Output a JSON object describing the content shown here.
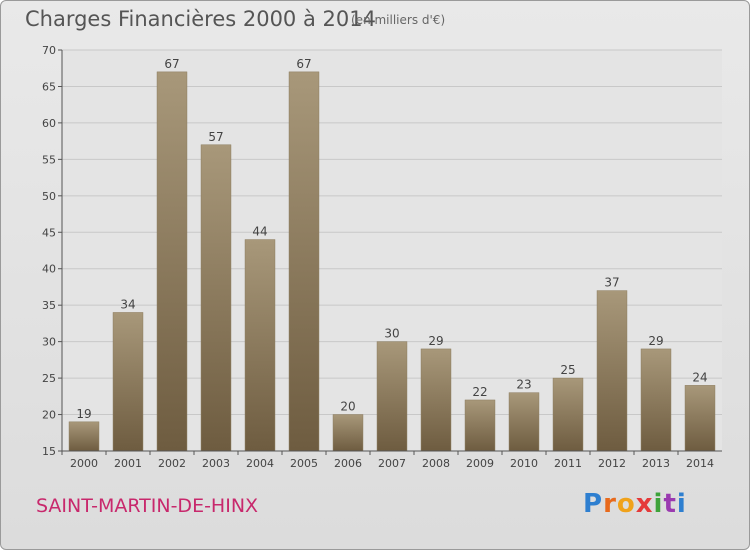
{
  "chart_data": {
    "type": "bar",
    "title": "Charges Financières 2000 à 2014",
    "subtitle": "(en milliers d'€)",
    "categories": [
      "2000",
      "2001",
      "2002",
      "2003",
      "2004",
      "2005",
      "2006",
      "2007",
      "2008",
      "2009",
      "2010",
      "2011",
      "2012",
      "2013",
      "2014"
    ],
    "values": [
      19,
      34,
      67,
      57,
      44,
      67,
      20,
      30,
      29,
      22,
      23,
      25,
      37,
      29,
      24
    ],
    "ylim": [
      15,
      70
    ],
    "yticks": [
      15,
      20,
      25,
      30,
      35,
      40,
      45,
      50,
      55,
      60,
      65,
      70
    ],
    "grid": true,
    "xlabel": "",
    "ylabel": "",
    "colors": {
      "bar_top": "#a8987a",
      "bar_bottom": "#6e5c40",
      "grid": "#c8c8c8",
      "axis": "#555555"
    }
  },
  "footer": {
    "commune": "SAINT-MARTIN-DE-HINX",
    "logo_text": "Proxiti"
  }
}
